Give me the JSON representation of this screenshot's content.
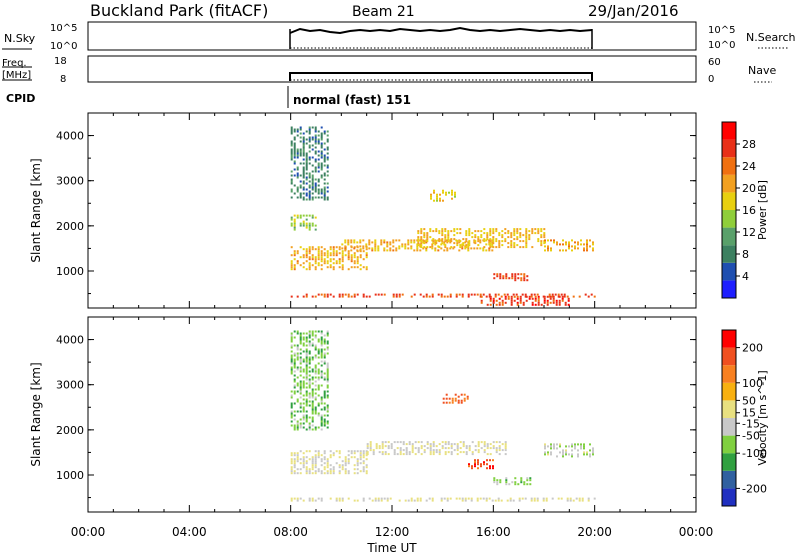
{
  "header": {
    "site": "Buckland Park (fitACF)",
    "beam": "Beam 21",
    "date": "29/Jan/2016"
  },
  "noise_panel": {
    "left_label": "N.Sky",
    "left_ticks": [
      "10^5",
      "10^0"
    ],
    "right_ticks": [
      "10^5",
      "10^0"
    ],
    "right_label": "N.Search"
  },
  "freq_panel": {
    "left_label_1": "Freq.",
    "left_label_2": "[MHz]",
    "left_ticks": [
      "18",
      "8"
    ],
    "right_ticks": [
      "60",
      "0"
    ],
    "right_label": "Nave"
  },
  "cpid": {
    "label": "CPID",
    "mode": "normal (fast) 151"
  },
  "colors": {
    "power_scale": [
      "#1f1fff",
      "#1f4fb0",
      "#3c8060",
      "#59a06a",
      "#8fce3a",
      "#e8d010",
      "#f2a020",
      "#f07010",
      "#e83018",
      "#ff0000"
    ],
    "velocity_scale": [
      "#2030c0",
      "#3060a0",
      "#30a040",
      "#80d040",
      "#c8c8c8",
      "#e8e080",
      "#f8b010",
      "#f88020",
      "#f05020",
      "#ff0000"
    ]
  },
  "chart_data": [
    {
      "type": "heatmap",
      "title": "",
      "xlabel": "",
      "ylabel": "Slant Range [km]",
      "x_ticks": [
        "00:00",
        "04:00",
        "08:00",
        "12:00",
        "16:00",
        "20:00",
        "00:00"
      ],
      "xlim_hours": [
        0,
        24
      ],
      "ylim_km": [
        180,
        4500
      ],
      "y_ticks": [
        1000,
        2000,
        3000,
        4000
      ],
      "colorbar": {
        "label": "Power [dB]",
        "ticks": [
          4,
          8,
          12,
          16,
          20,
          24,
          28
        ],
        "range": [
          0,
          32
        ]
      },
      "data_coverage_hours": [
        8,
        20
      ],
      "echo_regions": [
        {
          "t": [
            8.0,
            20.0
          ],
          "range_km": [
            430,
            500
          ],
          "level": 26
        },
        {
          "t": [
            15.5,
            19.0
          ],
          "range_km": [
            250,
            450
          ],
          "level": 27
        },
        {
          "t": [
            8.0,
            11.0
          ],
          "range_km": [
            1050,
            1550
          ],
          "level": 20
        },
        {
          "t": [
            10.0,
            16.0
          ],
          "range_km": [
            1450,
            1700
          ],
          "level": 20
        },
        {
          "t": [
            13.0,
            18.0
          ],
          "range_km": [
            1550,
            1950
          ],
          "level": 19
        },
        {
          "t": [
            16.0,
            17.5
          ],
          "range_km": [
            800,
            950
          ],
          "level": 26
        },
        {
          "t": [
            18.0,
            20.0
          ],
          "range_km": [
            1450,
            1700
          ],
          "level": 20
        },
        {
          "t": [
            8.0,
            9.0
          ],
          "range_km": [
            1900,
            2250
          ],
          "level": 14
        },
        {
          "t": [
            13.5,
            14.5
          ],
          "range_km": [
            2550,
            2800
          ],
          "level": 18
        },
        {
          "t": [
            8.0,
            9.5
          ],
          "range_km": [
            2600,
            4200
          ],
          "level": 8
        }
      ]
    },
    {
      "type": "heatmap",
      "title": "",
      "xlabel": "Time UT",
      "ylabel": "Slant Range [km]",
      "x_ticks": [
        "00:00",
        "04:00",
        "08:00",
        "12:00",
        "16:00",
        "20:00",
        "00:00"
      ],
      "xlim_hours": [
        0,
        24
      ],
      "ylim_km": [
        180,
        4500
      ],
      "y_ticks": [
        1000,
        2000,
        3000,
        4000
      ],
      "colorbar": {
        "label": "Velocity [m s^-1]",
        "ticks": [
          200,
          100,
          50,
          15,
          -15,
          -50,
          -100,
          -200
        ],
        "range": [
          -250,
          250
        ]
      },
      "data_coverage_hours": [
        8,
        20
      ],
      "echo_regions": [
        {
          "t": [
            8.0,
            20.0
          ],
          "range_km": [
            430,
            500
          ],
          "level": 0
        },
        {
          "t": [
            8.0,
            11.0
          ],
          "range_km": [
            1050,
            1550
          ],
          "level": 0
        },
        {
          "t": [
            11.0,
            16.5
          ],
          "range_km": [
            1450,
            1750
          ],
          "level": 0
        },
        {
          "t": [
            15.0,
            16.0
          ],
          "range_km": [
            1150,
            1350
          ],
          "level": 180
        },
        {
          "t": [
            16.0,
            17.5
          ],
          "range_km": [
            800,
            950
          ],
          "level": -60
        },
        {
          "t": [
            18.0,
            20.0
          ],
          "range_km": [
            1400,
            1700
          ],
          "level": -40
        },
        {
          "t": [
            14.0,
            15.0
          ],
          "range_km": [
            2600,
            2800
          ],
          "level": 150
        },
        {
          "t": [
            8.0,
            9.5
          ],
          "range_km": [
            2000,
            4200
          ],
          "level": -80
        }
      ]
    }
  ]
}
